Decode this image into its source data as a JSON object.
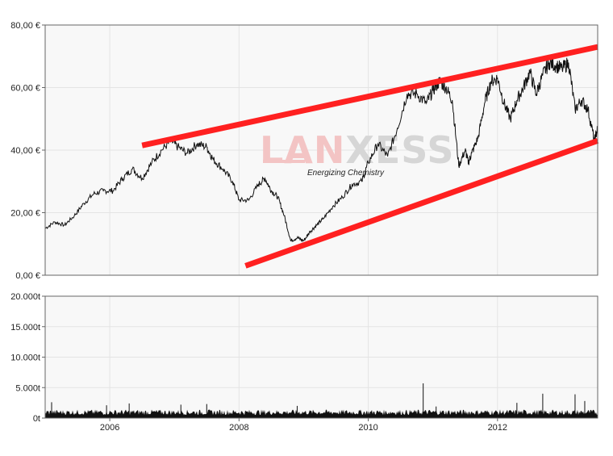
{
  "chart_data": [
    {
      "type": "line",
      "y_ticks": [
        "0,00 €",
        "20,00 €",
        "40,00 €",
        "60,00 €",
        "80,00 €"
      ],
      "y_tick_values": [
        0,
        20,
        40,
        60,
        80
      ],
      "ylim": [
        0,
        80
      ],
      "xlim": [
        2005.0,
        2013.55
      ],
      "x_gridlines": [
        2006,
        2008,
        2010,
        2012
      ],
      "grid": true,
      "series": [
        {
          "color": "#111111",
          "x": [
            2005.0,
            2005.15,
            2005.3,
            2005.45,
            2005.6,
            2005.75,
            2005.9,
            2006.05,
            2006.2,
            2006.35,
            2006.5,
            2006.65,
            2006.8,
            2006.95,
            2007.05,
            2007.2,
            2007.35,
            2007.5,
            2007.6,
            2007.75,
            2007.9,
            2008.0,
            2008.15,
            2008.3,
            2008.4,
            2008.5,
            2008.6,
            2008.7,
            2008.8,
            2008.9,
            2009.0,
            2009.1,
            2009.2,
            2009.3,
            2009.45,
            2009.6,
            2009.75,
            2009.9,
            2010.0,
            2010.15,
            2010.3,
            2010.45,
            2010.6,
            2010.75,
            2010.9,
            2011.0,
            2011.1,
            2011.2,
            2011.3,
            2011.4,
            2011.5,
            2011.55,
            2011.6,
            2011.7,
            2011.8,
            2011.9,
            2012.0,
            2012.1,
            2012.2,
            2012.3,
            2012.4,
            2012.5,
            2012.6,
            2012.7,
            2012.8,
            2012.9,
            2013.0,
            2013.1,
            2013.2,
            2013.3,
            2013.4,
            2013.5,
            2013.55
          ],
          "values": [
            15,
            17,
            16,
            19,
            23,
            26,
            27,
            27,
            31,
            34,
            31,
            36,
            40,
            43,
            41,
            39,
            42,
            41,
            37,
            34,
            30,
            24,
            24,
            29,
            31,
            27,
            25,
            19,
            11,
            12,
            11,
            14,
            16,
            18,
            22,
            25,
            29,
            30,
            36,
            42,
            38,
            47,
            58,
            58,
            55,
            59,
            62,
            60,
            56,
            35,
            40,
            36,
            39,
            44,
            55,
            62,
            63,
            55,
            50,
            56,
            60,
            65,
            58,
            64,
            68,
            67,
            66,
            68,
            53,
            56,
            53,
            43,
            47
          ]
        }
      ],
      "trendlines": [
        {
          "color": "#ff2020",
          "x": [
            2006.5,
            2013.55
          ],
          "y": [
            41.5,
            73
          ]
        },
        {
          "color": "#ff2020",
          "x": [
            2008.1,
            2013.55
          ],
          "y": [
            3,
            43
          ]
        }
      ]
    },
    {
      "type": "bar",
      "y_ticks": [
        "0t",
        "5.000t",
        "10.000t",
        "15.000t",
        "20.000t"
      ],
      "y_tick_values": [
        0,
        5000,
        10000,
        15000,
        20000
      ],
      "ylim": [
        0,
        20000
      ],
      "xlim": [
        2005.0,
        2013.55
      ],
      "x_ticks": [
        "2006",
        "2008",
        "2010",
        "2012"
      ],
      "x_tick_values": [
        2006,
        2008,
        2010,
        2012
      ],
      "grid": true,
      "series": [
        {
          "color": "#111111",
          "baseline_volume": 1000,
          "spikes_x": [
            2005.1,
            2005.95,
            2006.3,
            2007.1,
            2007.5,
            2008.9,
            2010.85,
            2011.05,
            2012.3,
            2012.7,
            2013.2,
            2013.35
          ],
          "spikes_values": [
            2600,
            2100,
            2400,
            2200,
            2300,
            2000,
            5700,
            1900,
            2500,
            4000,
            3900,
            2800
          ]
        }
      ]
    }
  ],
  "watermark": {
    "logo_text": "LANXESS",
    "tagline": "Energizing Chemistry",
    "colors": {
      "lan": "#f3c4c4",
      "xess": "#d6d6d6",
      "tagline": "#f0b4b4"
    }
  },
  "colors": {
    "plot_bg": "#f8f8f8",
    "grid": "#e4e4e4",
    "frame": "#666666"
  }
}
